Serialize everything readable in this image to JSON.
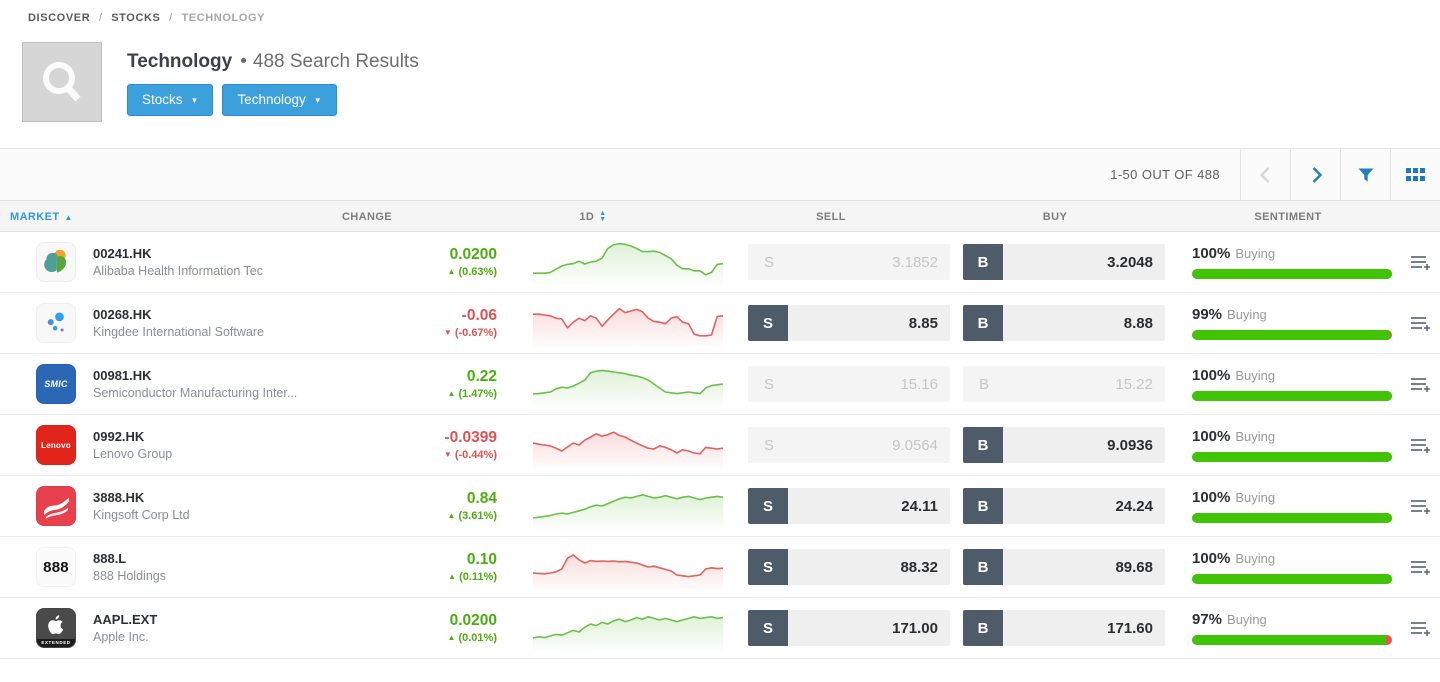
{
  "breadcrumb": {
    "items": [
      "DISCOVER",
      "STOCKS",
      "TECHNOLOGY"
    ],
    "separator": "/"
  },
  "header": {
    "title": "Technology",
    "bullet": "•",
    "subtitle": "488 Search Results",
    "filters": [
      {
        "label": "Stocks"
      },
      {
        "label": "Technology"
      }
    ]
  },
  "toolbar": {
    "range_label": "1-50 OUT OF 488"
  },
  "table": {
    "columns": {
      "market": "MARKET",
      "change": "CHANGE",
      "period": "1D",
      "sell": "SELL",
      "buy": "BUY",
      "sentiment": "SENTIMENT"
    }
  },
  "colors": {
    "green_text": "#4cae0e",
    "red_text": "#e05252",
    "bar_green": "#41c306",
    "bar_red": "#ef5350",
    "accent_blue": "#3498db",
    "icon_blue": "#1f7fc0",
    "spark_green": "#6cc04a",
    "spark_red": "#e4605e",
    "trade_dark": "#4e5c69"
  },
  "rows": [
    {
      "symbol": "00241.HK",
      "name": "Alibaba Health Information Tec",
      "change": "0.0200",
      "change_dir": "up",
      "change_pct": "(0.63%)",
      "logo": {
        "kind": "alibaba-health",
        "bg": "#f8f8f8"
      },
      "spark": {
        "color": "green",
        "values": [
          0.22,
          0.22,
          0.22,
          0.24,
          0.32,
          0.4,
          0.44,
          0.46,
          0.52,
          0.45,
          0.5,
          0.52,
          0.6,
          0.84,
          0.93,
          0.96,
          0.94,
          0.9,
          0.84,
          0.76,
          0.76,
          0.77,
          0.74,
          0.66,
          0.58,
          0.42,
          0.33,
          0.33,
          0.28,
          0.28,
          0.18,
          0.24,
          0.44,
          0.46
        ]
      },
      "sell": {
        "label": "S",
        "price": "3.1852",
        "disabled": true
      },
      "buy": {
        "label": "B",
        "price": "3.2048",
        "disabled": false
      },
      "sentiment": {
        "pct": "100%",
        "label": "Buying",
        "value": 100
      }
    },
    {
      "symbol": "00268.HK",
      "name": "Kingdee International Software",
      "change": "-0.06",
      "change_dir": "down",
      "change_pct": "(-0.67%)",
      "logo": {
        "kind": "kingdee-dots",
        "bg": "#f8f8f8"
      },
      "spark": {
        "color": "red",
        "values": [
          0.72,
          0.72,
          0.7,
          0.68,
          0.62,
          0.6,
          0.38,
          0.52,
          0.62,
          0.56,
          0.68,
          0.62,
          0.42,
          0.58,
          0.72,
          0.86,
          0.76,
          0.8,
          0.84,
          0.78,
          0.62,
          0.54,
          0.52,
          0.48,
          0.62,
          0.66,
          0.52,
          0.48,
          0.22,
          0.18,
          0.18,
          0.2,
          0.66,
          0.68
        ]
      },
      "sell": {
        "label": "S",
        "price": "8.85",
        "disabled": false
      },
      "buy": {
        "label": "B",
        "price": "8.88",
        "disabled": false
      },
      "sentiment": {
        "pct": "99%",
        "label": "Buying",
        "value": 99
      }
    },
    {
      "symbol": "00981.HK",
      "name": "Semiconductor Manufacturing Inter...",
      "change": "0.22",
      "change_dir": "up",
      "change_pct": "(1.47%)",
      "logo": {
        "kind": "text",
        "text": "SMIC",
        "bg": "#2b67b5",
        "color": "#ffffff",
        "size": 9,
        "italic": true,
        "bold": true
      },
      "spark": {
        "color": "green",
        "values": [
          0.25,
          0.26,
          0.28,
          0.3,
          0.38,
          0.42,
          0.4,
          0.45,
          0.52,
          0.6,
          0.78,
          0.82,
          0.84,
          0.82,
          0.8,
          0.78,
          0.76,
          0.72,
          0.7,
          0.66,
          0.6,
          0.5,
          0.4,
          0.3,
          0.28,
          0.26,
          0.28,
          0.3,
          0.28,
          0.26,
          0.4,
          0.46,
          0.48,
          0.5
        ]
      },
      "sell": {
        "label": "S",
        "price": "15.16",
        "disabled": true
      },
      "buy": {
        "label": "B",
        "price": "15.22",
        "disabled": true
      },
      "sentiment": {
        "pct": "100%",
        "label": "Buying",
        "value": 100
      }
    },
    {
      "symbol": "0992.HK",
      "name": "Lenovo Group",
      "change": "-0.0399",
      "change_dir": "down",
      "change_pct": "(-0.44%)",
      "logo": {
        "kind": "text",
        "text": "Lenovo",
        "bg": "#e1251b",
        "color": "#ffffff",
        "size": 8,
        "italic": false,
        "bold": true
      },
      "spark": {
        "color": "red",
        "values": [
          0.55,
          0.52,
          0.5,
          0.48,
          0.42,
          0.35,
          0.45,
          0.55,
          0.5,
          0.62,
          0.7,
          0.78,
          0.72,
          0.76,
          0.82,
          0.74,
          0.7,
          0.62,
          0.55,
          0.48,
          0.42,
          0.4,
          0.48,
          0.44,
          0.38,
          0.3,
          0.38,
          0.35,
          0.3,
          0.28,
          0.44,
          0.42,
          0.4,
          0.42
        ]
      },
      "sell": {
        "label": "S",
        "price": "9.0564",
        "disabled": true
      },
      "buy": {
        "label": "B",
        "price": "9.0936",
        "disabled": false
      },
      "sentiment": {
        "pct": "100%",
        "label": "Buying",
        "value": 100
      }
    },
    {
      "symbol": "3888.HK",
      "name": "Kingsoft Corp Ltd",
      "change": "0.84",
      "change_dir": "up",
      "change_pct": "(3.61%)",
      "logo": {
        "kind": "kingsoft-swoosh",
        "bg": "#e8414d"
      },
      "spark": {
        "color": "green",
        "values": [
          0.2,
          0.22,
          0.24,
          0.26,
          0.3,
          0.32,
          0.3,
          0.34,
          0.38,
          0.42,
          0.48,
          0.52,
          0.5,
          0.56,
          0.62,
          0.68,
          0.72,
          0.7,
          0.74,
          0.78,
          0.74,
          0.7,
          0.72,
          0.76,
          0.72,
          0.68,
          0.72,
          0.74,
          0.7,
          0.66,
          0.7,
          0.72,
          0.74,
          0.72
        ]
      },
      "sell": {
        "label": "S",
        "price": "24.11",
        "disabled": false
      },
      "buy": {
        "label": "B",
        "price": "24.24",
        "disabled": false
      },
      "sentiment": {
        "pct": "100%",
        "label": "Buying",
        "value": 100
      }
    },
    {
      "symbol": "888.L",
      "name": "888 Holdings",
      "change": "0.10",
      "change_dir": "up",
      "change_pct": "(0.11%)",
      "logo": {
        "kind": "text",
        "text": "888",
        "bg": "#fbfbfb",
        "color": "#141414",
        "size": 15,
        "italic": false,
        "bold": true
      },
      "spark": {
        "color": "red",
        "values": [
          0.35,
          0.34,
          0.33,
          0.35,
          0.38,
          0.45,
          0.72,
          0.8,
          0.68,
          0.6,
          0.66,
          0.64,
          0.65,
          0.64,
          0.65,
          0.63,
          0.64,
          0.62,
          0.6,
          0.55,
          0.5,
          0.52,
          0.48,
          0.44,
          0.4,
          0.3,
          0.28,
          0.26,
          0.28,
          0.3,
          0.45,
          0.48,
          0.46,
          0.47
        ]
      },
      "sell": {
        "label": "S",
        "price": "88.32",
        "disabled": false
      },
      "buy": {
        "label": "B",
        "price": "89.68",
        "disabled": false
      },
      "sentiment": {
        "pct": "100%",
        "label": "Buying",
        "value": 100
      }
    },
    {
      "symbol": "AAPL.EXT",
      "name": "Apple Inc.",
      "change": "0.0200",
      "change_dir": "up",
      "change_pct": "(0.01%)",
      "logo": {
        "kind": "apple",
        "bg": "#4a4a4a",
        "badge": "EXTENDED"
      },
      "spark": {
        "color": "green",
        "values": [
          0.25,
          0.28,
          0.26,
          0.3,
          0.34,
          0.32,
          0.38,
          0.44,
          0.4,
          0.52,
          0.6,
          0.56,
          0.64,
          0.6,
          0.68,
          0.72,
          0.66,
          0.7,
          0.76,
          0.72,
          0.78,
          0.74,
          0.7,
          0.74,
          0.7,
          0.66,
          0.7,
          0.74,
          0.78,
          0.74,
          0.76,
          0.78,
          0.74,
          0.76
        ]
      },
      "sell": {
        "label": "S",
        "price": "171.00",
        "disabled": false
      },
      "buy": {
        "label": "B",
        "price": "171.60",
        "disabled": false
      },
      "sentiment": {
        "pct": "97%",
        "label": "Buying",
        "value": 97
      }
    }
  ]
}
